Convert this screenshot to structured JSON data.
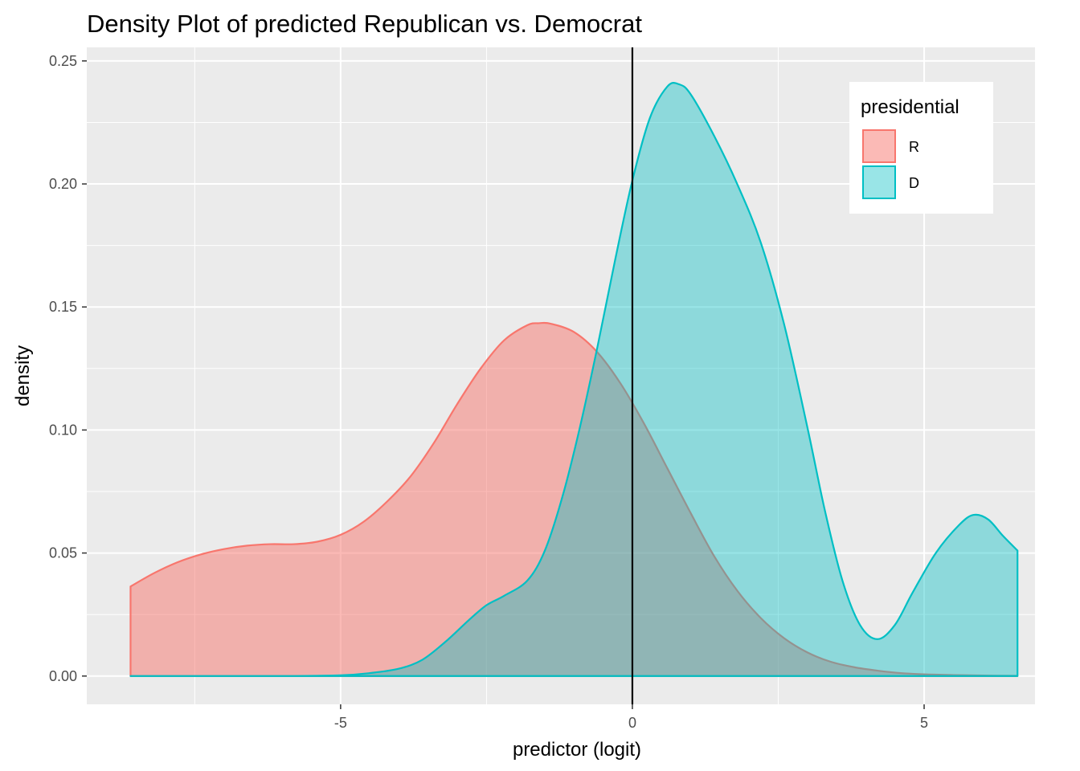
{
  "chart_data": {
    "type": "area",
    "title": "Density Plot of predicted Republican vs. Democrat",
    "xlabel": "predictor (logit)",
    "ylabel": "density",
    "xlim": [
      -9.35,
      6.9
    ],
    "ylim": [
      -0.0115,
      0.2555
    ],
    "x_ticks": [
      -5,
      0,
      5
    ],
    "x_tick_labels": [
      "-5",
      "0",
      "5"
    ],
    "y_ticks": [
      0,
      0.05,
      0.1,
      0.15,
      0.2,
      0.25
    ],
    "y_tick_labels": [
      "0.00",
      "0.05",
      "0.10",
      "0.15",
      "0.20",
      "0.25"
    ],
    "grid": true,
    "reference_line": {
      "x": 0,
      "color": "#000000"
    },
    "legend": {
      "title": "presidential",
      "position": "top-right"
    },
    "series": [
      {
        "name": "R",
        "line_color": "#F8766D",
        "fill_color": "#F8766D",
        "fill_opacity": 0.5,
        "points": [
          [
            -8.6,
            0.0364
          ],
          [
            -8.2,
            0.0418
          ],
          [
            -7.8,
            0.0462
          ],
          [
            -7.4,
            0.0494
          ],
          [
            -7.0,
            0.0516
          ],
          [
            -6.6,
            0.053
          ],
          [
            -6.2,
            0.0536
          ],
          [
            -5.8,
            0.0536
          ],
          [
            -5.4,
            0.0546
          ],
          [
            -5.0,
            0.0574
          ],
          [
            -4.6,
            0.0628
          ],
          [
            -4.2,
            0.071
          ],
          [
            -3.8,
            0.0812
          ],
          [
            -3.4,
            0.0948
          ],
          [
            -3.0,
            0.1106
          ],
          [
            -2.6,
            0.125
          ],
          [
            -2.2,
            0.1364
          ],
          [
            -1.8,
            0.1426
          ],
          [
            -1.6,
            0.1434
          ],
          [
            -1.4,
            0.1432
          ],
          [
            -1.0,
            0.1398
          ],
          [
            -0.6,
            0.1316
          ],
          [
            -0.2,
            0.1188
          ],
          [
            0.2,
            0.1026
          ],
          [
            0.6,
            0.0844
          ],
          [
            1.0,
            0.0662
          ],
          [
            1.4,
            0.0488
          ],
          [
            1.8,
            0.0346
          ],
          [
            2.2,
            0.0236
          ],
          [
            2.6,
            0.0154
          ],
          [
            3.0,
            0.0096
          ],
          [
            3.4,
            0.0058
          ],
          [
            3.8,
            0.0036
          ],
          [
            4.2,
            0.0022
          ],
          [
            4.6,
            0.0012
          ],
          [
            5.0,
            0.0007
          ],
          [
            5.5,
            0.0004
          ],
          [
            6.0,
            0.0002
          ],
          [
            6.6,
            0.0001
          ]
        ]
      },
      {
        "name": "D",
        "line_color": "#00BFC4",
        "fill_color": "#00BFC4",
        "fill_opacity": 0.4,
        "points": [
          [
            -8.6,
            0.0
          ],
          [
            -6.0,
            0.0
          ],
          [
            -5.0,
            0.0003
          ],
          [
            -4.5,
            0.0012
          ],
          [
            -4.0,
            0.003
          ],
          [
            -3.6,
            0.0066
          ],
          [
            -3.2,
            0.014
          ],
          [
            -2.8,
            0.0228
          ],
          [
            -2.5,
            0.0288
          ],
          [
            -2.2,
            0.0326
          ],
          [
            -1.8,
            0.0388
          ],
          [
            -1.5,
            0.051
          ],
          [
            -1.2,
            0.0728
          ],
          [
            -0.9,
            0.101
          ],
          [
            -0.6,
            0.1336
          ],
          [
            -0.3,
            0.1686
          ],
          [
            0.0,
            0.2014
          ],
          [
            0.3,
            0.2268
          ],
          [
            0.6,
            0.2396
          ],
          [
            0.8,
            0.2405
          ],
          [
            1.0,
            0.2364
          ],
          [
            1.4,
            0.2196
          ],
          [
            1.8,
            0.1998
          ],
          [
            2.2,
            0.1762
          ],
          [
            2.6,
            0.143
          ],
          [
            3.0,
            0.101
          ],
          [
            3.3,
            0.0672
          ],
          [
            3.6,
            0.0388
          ],
          [
            3.9,
            0.0208
          ],
          [
            4.2,
            0.015
          ],
          [
            4.5,
            0.0208
          ],
          [
            4.8,
            0.0338
          ],
          [
            5.2,
            0.05
          ],
          [
            5.6,
            0.0614
          ],
          [
            5.85,
            0.0655
          ],
          [
            6.1,
            0.0636
          ],
          [
            6.35,
            0.057
          ],
          [
            6.6,
            0.051
          ]
        ]
      }
    ]
  }
}
